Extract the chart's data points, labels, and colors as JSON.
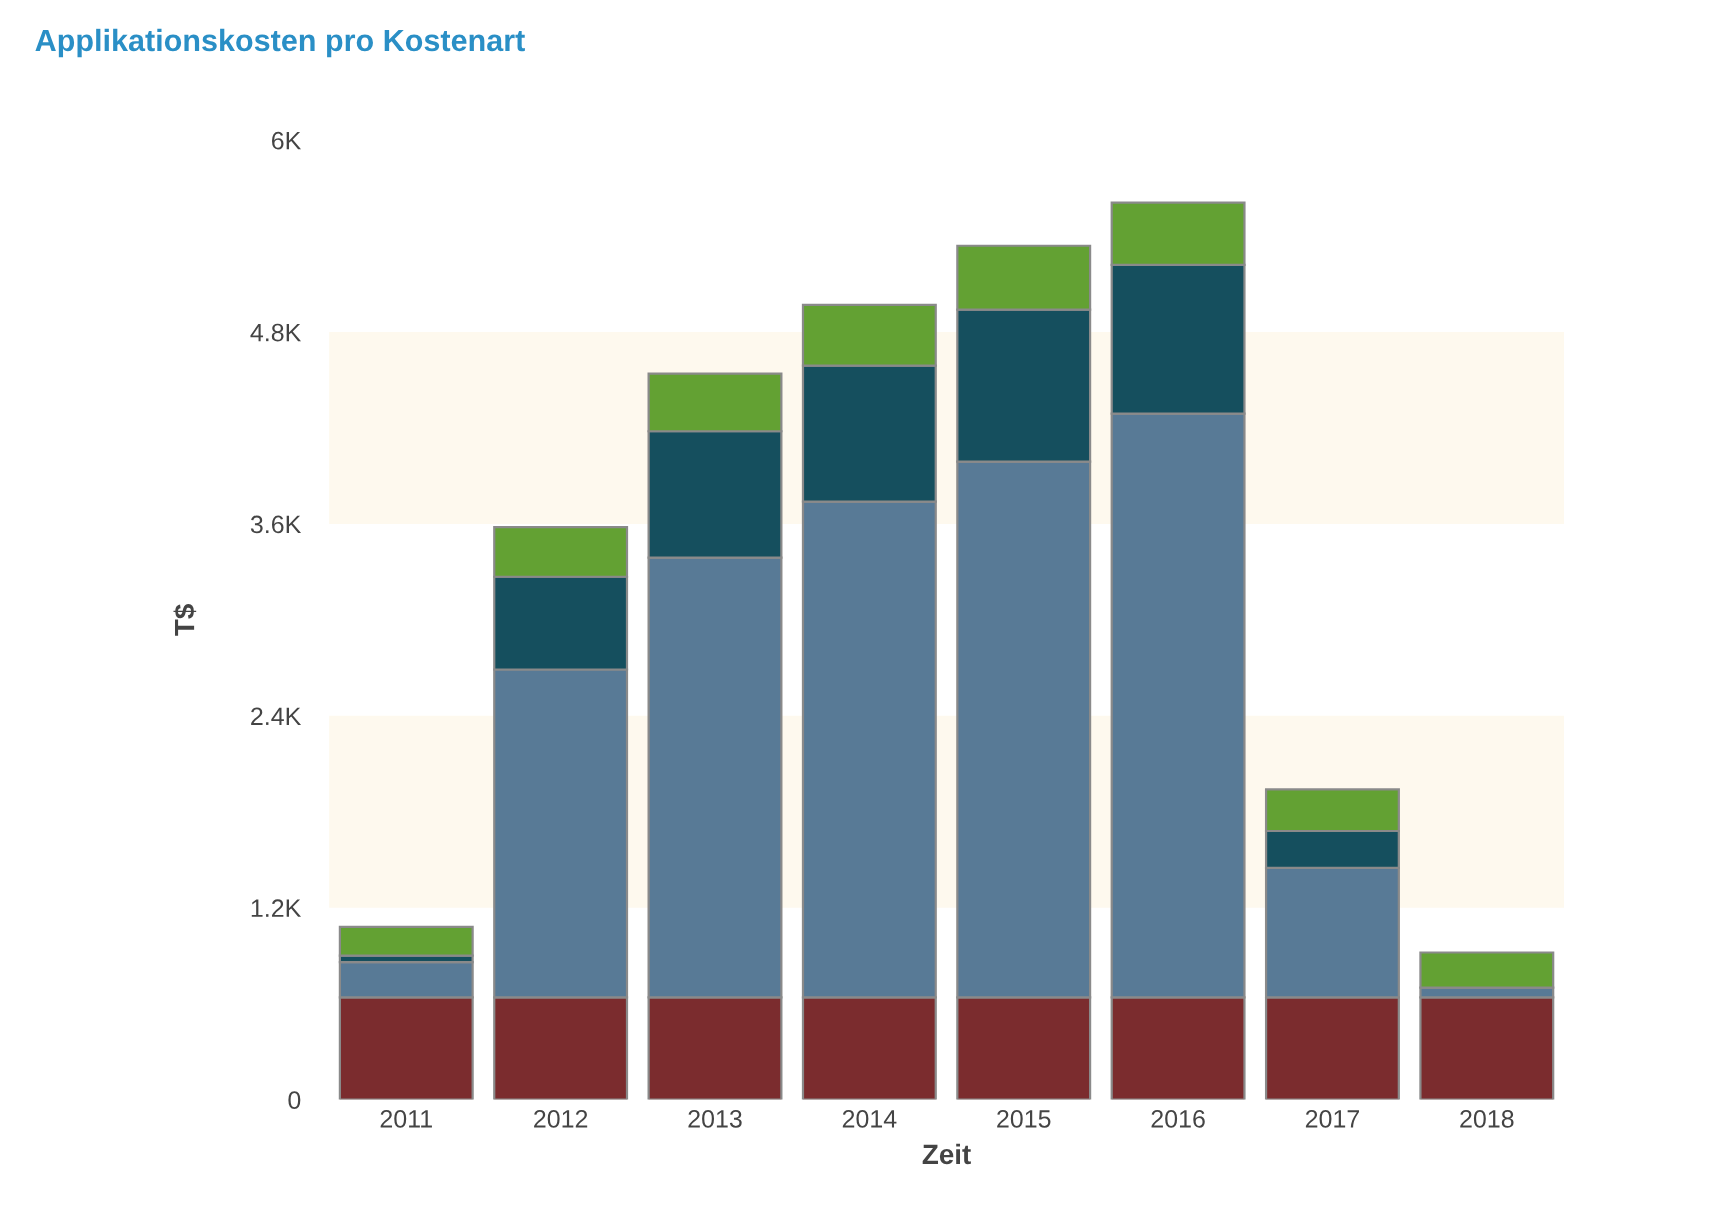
{
  "chart_data": {
    "type": "bar",
    "title": "Applikationskosten pro Kostenart",
    "xlabel": "Zeit",
    "ylabel": "T$",
    "stacked": true,
    "grid": false,
    "categories": [
      "2011",
      "2012",
      "2013",
      "2014",
      "2015",
      "2016",
      "2017",
      "2018"
    ],
    "series": [
      {
        "color": "#7b2c2e",
        "values": [
          640,
          640,
          640,
          640,
          640,
          640,
          640,
          640
        ]
      },
      {
        "color": "#587a96",
        "values": [
          220,
          2050,
          2750,
          3100,
          3350,
          3650,
          810,
          60
        ]
      },
      {
        "color": "#154f5e",
        "values": [
          40,
          580,
          790,
          850,
          950,
          930,
          230,
          0
        ]
      },
      {
        "color": "#63a133",
        "values": [
          180,
          310,
          360,
          380,
          400,
          390,
          260,
          220
        ]
      }
    ],
    "ylim": [
      0,
      6000
    ],
    "yticks": [
      {
        "value": 0,
        "label": "0"
      },
      {
        "value": 1200,
        "label": "1.2K"
      },
      {
        "value": 2400,
        "label": "2.4K"
      },
      {
        "value": 3600,
        "label": "3.6K"
      },
      {
        "value": 4800,
        "label": "4.8K"
      },
      {
        "value": 6000,
        "label": "6K"
      }
    ],
    "bands": [
      {
        "axis": "y",
        "from": 1200,
        "to": 2400,
        "color": "#fef9ee"
      },
      {
        "axis": "y",
        "from": 3600,
        "to": 4800,
        "color": "#fef9ee"
      }
    ]
  }
}
